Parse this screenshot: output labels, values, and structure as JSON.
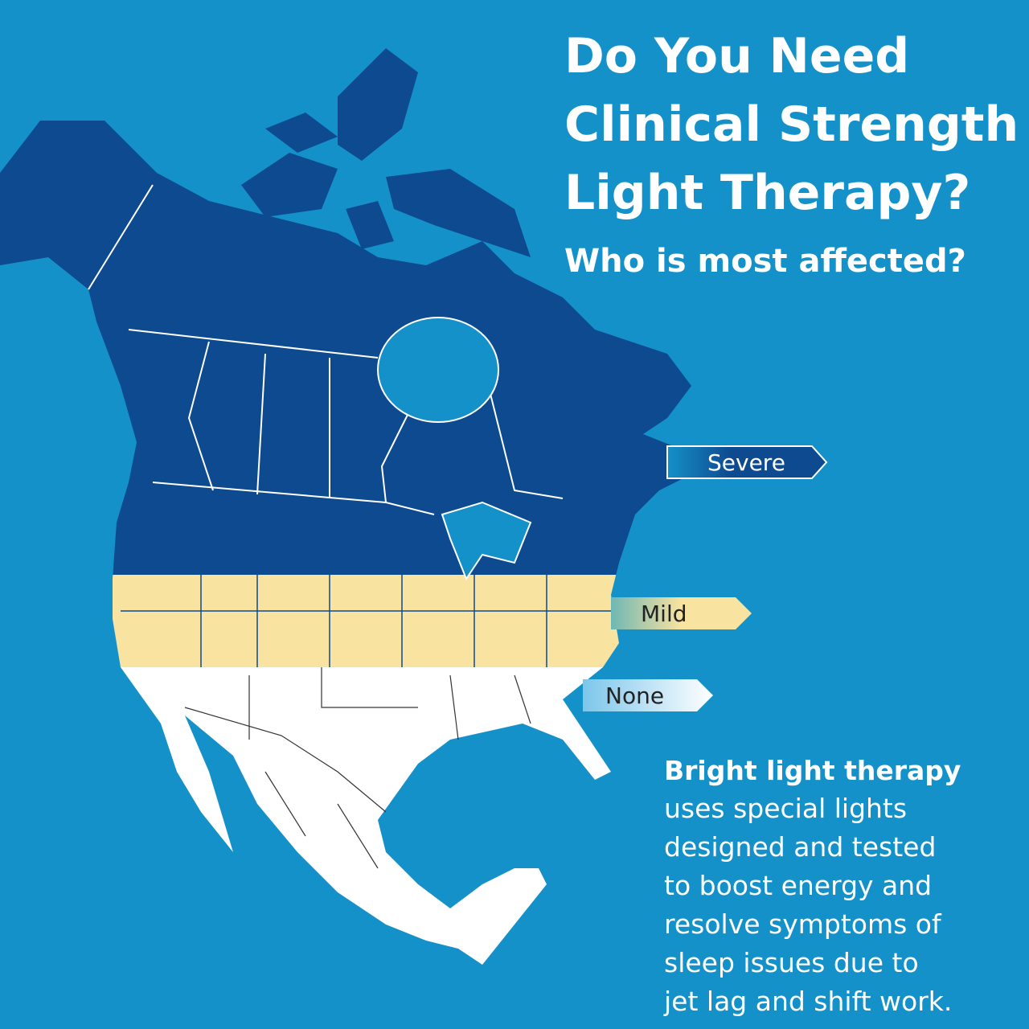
{
  "header": {
    "title_lines": [
      "Do You Need",
      "Clinical Strength",
      "Light Therapy?"
    ],
    "subtitle": "Who is most affected?"
  },
  "legend": {
    "items": [
      {
        "label": "Severe"
      },
      {
        "label": "Mild"
      },
      {
        "label": "None"
      }
    ]
  },
  "body": {
    "lead": "Bright light therapy",
    "lines": [
      "uses special lights",
      "designed and tested",
      "to boost energy and",
      "resolve symptoms of",
      "sleep issues due to",
      "jet lag and shift work."
    ]
  }
}
